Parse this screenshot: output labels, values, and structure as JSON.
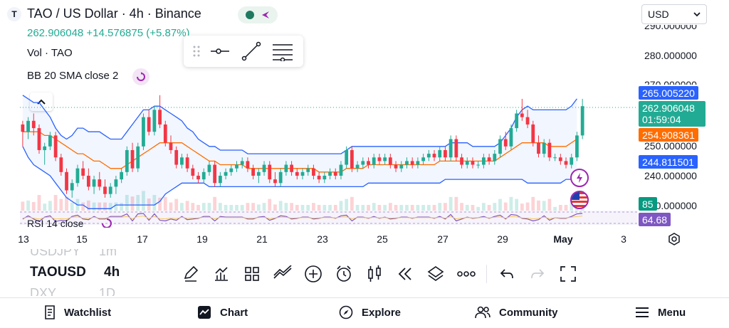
{
  "header": {
    "logo_letter": "T",
    "title": "TAO / US Dollar · 4h · Binance",
    "price_summary": "262.906048  +14.576875 (+5.87%)",
    "volume_label": "Vol · TAO",
    "bb_label": "BB 20 SMA close 2",
    "rsi_label": "RSI 14 close"
  },
  "currency_select": {
    "value": "USD"
  },
  "price_tags": {
    "bb_upper": "265.005220",
    "last": "262.906048",
    "countdown": "01:59:04",
    "bb_middle": "254.908361",
    "bb_lower": "244.811501",
    "volume": "85",
    "rsi": "64.68"
  },
  "colors": {
    "up": "#22ab94",
    "down": "#f23645",
    "bb_band": "#2962ff",
    "bb_mid": "#ff6d00",
    "rsi": "#7e57c2"
  },
  "symbols": {
    "prev": "USDJPY",
    "prev_tf": "1m",
    "current": "TAOUSD",
    "current_tf": "4h",
    "next": "DXY",
    "next_tf": "1D"
  },
  "toolbar_icons": [
    "pencil-icon",
    "indicators-icon",
    "layouts-icon",
    "drawings-icon",
    "plus-icon",
    "alert-clock-icon",
    "candle-type-icon",
    "replay-icon",
    "layers-icon",
    "more-icon",
    "undo-icon",
    "redo-icon",
    "fullscreen-icon"
  ],
  "bottom_nav": {
    "watchlist": "Watchlist",
    "chart": "Chart",
    "explore": "Explore",
    "community": "Community",
    "menu": "Menu"
  },
  "chart_data": {
    "type": "candlestick",
    "y_ticks": [
      "280.000000",
      "250.000000",
      "240.000000"
    ],
    "partial_ticks": [
      "290.000000",
      "270.000000",
      "230.000000"
    ],
    "x_ticks": [
      "13",
      "15",
      "17",
      "19",
      "21",
      "23",
      "25",
      "27",
      "29",
      "May",
      "3"
    ],
    "ylim": [
      230,
      292
    ],
    "candles": [
      [
        258,
        259,
        252,
        256
      ],
      [
        256,
        260,
        254,
        259
      ],
      [
        259,
        261,
        255,
        257
      ],
      [
        257,
        258,
        250,
        251
      ],
      [
        251,
        253,
        247,
        252
      ],
      [
        252,
        256,
        251,
        255
      ],
      [
        255,
        256,
        248,
        249
      ],
      [
        249,
        250,
        244,
        245
      ],
      [
        245,
        246,
        239,
        240
      ],
      [
        240,
        243,
        238,
        242
      ],
      [
        242,
        247,
        241,
        246
      ],
      [
        246,
        248,
        243,
        244
      ],
      [
        244,
        246,
        240,
        241
      ],
      [
        241,
        244,
        239,
        243
      ],
      [
        243,
        245,
        240,
        241
      ],
      [
        241,
        243,
        238,
        239
      ],
      [
        239,
        242,
        238,
        241
      ],
      [
        241,
        244,
        239,
        243
      ],
      [
        243,
        246,
        242,
        245
      ],
      [
        245,
        252,
        244,
        251
      ],
      [
        251,
        253,
        245,
        246
      ],
      [
        246,
        253,
        245,
        252
      ],
      [
        252,
        261,
        251,
        260
      ],
      [
        260,
        262,
        255,
        256
      ],
      [
        256,
        263,
        255,
        262
      ],
      [
        262,
        266,
        257,
        258
      ],
      [
        258,
        259,
        252,
        253
      ],
      [
        253,
        255,
        250,
        251
      ],
      [
        251,
        252,
        246,
        247
      ],
      [
        247,
        250,
        246,
        249
      ],
      [
        249,
        250,
        245,
        246
      ],
      [
        246,
        247,
        243,
        244
      ],
      [
        244,
        245,
        242,
        243
      ],
      [
        243,
        246,
        242,
        245
      ],
      [
        245,
        248,
        244,
        247
      ],
      [
        247,
        248,
        241,
        242
      ],
      [
        242,
        245,
        241,
        244
      ],
      [
        244,
        246,
        243,
        245
      ],
      [
        245,
        247,
        244,
        246
      ],
      [
        246,
        248,
        245,
        247
      ],
      [
        247,
        249,
        246,
        248
      ],
      [
        248,
        249,
        245,
        246
      ],
      [
        246,
        247,
        243,
        244
      ],
      [
        244,
        246,
        242,
        245
      ],
      [
        245,
        248,
        244,
        247
      ],
      [
        247,
        248,
        242,
        243
      ],
      [
        243,
        245,
        241,
        242
      ],
      [
        242,
        246,
        241,
        245
      ],
      [
        245,
        248,
        244,
        247
      ],
      [
        247,
        248,
        244,
        245
      ],
      [
        245,
        246,
        243,
        244
      ],
      [
        244,
        246,
        243,
        245
      ],
      [
        245,
        247,
        244,
        246
      ],
      [
        246,
        247,
        243,
        244
      ],
      [
        244,
        245,
        242,
        243
      ],
      [
        243,
        245,
        242,
        244
      ],
      [
        244,
        246,
        243,
        245
      ],
      [
        245,
        246,
        243,
        244
      ],
      [
        244,
        248,
        243,
        247
      ],
      [
        247,
        252,
        246,
        251
      ],
      [
        251,
        252,
        245,
        246
      ],
      [
        246,
        248,
        245,
        247
      ],
      [
        247,
        249,
        246,
        248
      ],
      [
        248,
        249,
        246,
        247
      ],
      [
        247,
        250,
        246,
        249
      ],
      [
        249,
        250,
        247,
        248
      ],
      [
        248,
        250,
        247,
        249
      ],
      [
        249,
        250,
        246,
        247
      ],
      [
        247,
        248,
        245,
        246
      ],
      [
        246,
        248,
        245,
        247
      ],
      [
        247,
        249,
        246,
        248
      ],
      [
        248,
        249,
        246,
        247
      ],
      [
        247,
        249,
        246,
        248
      ],
      [
        248,
        250,
        247,
        249
      ],
      [
        249,
        251,
        248,
        250
      ],
      [
        250,
        251,
        248,
        249
      ],
      [
        249,
        252,
        248,
        251
      ],
      [
        251,
        252,
        248,
        249
      ],
      [
        249,
        255,
        248,
        254
      ],
      [
        254,
        255,
        248,
        249
      ],
      [
        249,
        250,
        246,
        247
      ],
      [
        247,
        249,
        246,
        248
      ],
      [
        248,
        249,
        246,
        247
      ],
      [
        247,
        248,
        246,
        247
      ],
      [
        247,
        250,
        246,
        249
      ],
      [
        249,
        250,
        247,
        248
      ],
      [
        248,
        251,
        247,
        250
      ],
      [
        250,
        255,
        249,
        254
      ],
      [
        254,
        256,
        251,
        252
      ],
      [
        252,
        258,
        251,
        257
      ],
      [
        257,
        262,
        256,
        261
      ],
      [
        261,
        265,
        259,
        260
      ],
      [
        260,
        262,
        257,
        258
      ],
      [
        258,
        259,
        252,
        253
      ],
      [
        253,
        255,
        249,
        250
      ],
      [
        250,
        254,
        249,
        253
      ],
      [
        253,
        254,
        248,
        249
      ],
      [
        249,
        250,
        248,
        249
      ],
      [
        249,
        250,
        247,
        248
      ],
      [
        248,
        249,
        246,
        247
      ],
      [
        247,
        250,
        246,
        249
      ],
      [
        249,
        256,
        248,
        255
      ],
      [
        255,
        265,
        254,
        263
      ]
    ],
    "bb_upper": [
      266,
      265,
      264,
      264,
      262,
      260,
      257,
      255,
      254,
      255,
      257,
      257,
      256,
      256,
      256,
      255,
      254,
      254,
      254,
      256,
      258,
      260,
      262,
      262,
      263,
      263,
      262,
      261,
      260,
      259,
      257,
      256,
      254,
      253,
      252,
      252,
      251,
      251,
      251,
      251,
      251,
      250,
      250,
      250,
      250,
      250,
      250,
      250,
      250,
      250,
      250,
      250,
      250,
      250,
      250,
      250,
      250,
      250,
      250,
      251,
      252,
      252,
      252,
      252,
      252,
      252,
      252,
      252,
      252,
      252,
      252,
      252,
      252,
      252,
      252,
      252,
      252,
      252,
      253,
      253,
      253,
      253,
      252,
      252,
      252,
      252,
      252,
      253,
      255,
      257,
      260,
      262,
      263,
      262,
      262,
      262,
      262,
      262,
      262,
      262,
      263,
      265
    ],
    "bb_middle": [
      256,
      256,
      256,
      256,
      255,
      255,
      254,
      253,
      252,
      251,
      250,
      250,
      249,
      248,
      248,
      247,
      246,
      246,
      246,
      247,
      248,
      249,
      250,
      251,
      252,
      253,
      253,
      253,
      253,
      253,
      252,
      251,
      250,
      249,
      248,
      248,
      247,
      247,
      247,
      247,
      247,
      246,
      246,
      246,
      246,
      246,
      246,
      246,
      246,
      246,
      246,
      246,
      246,
      246,
      245,
      245,
      245,
      245,
      245,
      246,
      246,
      246,
      246,
      247,
      247,
      247,
      247,
      247,
      247,
      247,
      247,
      247,
      247,
      247,
      247,
      247,
      248,
      248,
      248,
      248,
      248,
      248,
      248,
      248,
      248,
      248,
      248,
      249,
      250,
      251,
      252,
      253,
      253,
      253,
      253,
      253,
      252,
      252,
      252,
      252,
      253,
      254
    ],
    "bb_lower": [
      252,
      249,
      247,
      246,
      245,
      244,
      242,
      240,
      238,
      237,
      236,
      236,
      235,
      235,
      235,
      235,
      235,
      236,
      236,
      236,
      236,
      236,
      236,
      236,
      236,
      237,
      239,
      240,
      241,
      242,
      242,
      242,
      242,
      242,
      241,
      241,
      241,
      241,
      241,
      241,
      241,
      241,
      241,
      241,
      241,
      241,
      241,
      241,
      241,
      241,
      241,
      241,
      241,
      241,
      241,
      241,
      241,
      241,
      241,
      241,
      241,
      241,
      241,
      242,
      242,
      242,
      242,
      242,
      242,
      242,
      242,
      242,
      242,
      242,
      242,
      242,
      242,
      243,
      243,
      243,
      243,
      243,
      243,
      243,
      243,
      243,
      243,
      243,
      243,
      243,
      243,
      243,
      242,
      242,
      242,
      242,
      242,
      242,
      242,
      243,
      243,
      244
    ]
  }
}
